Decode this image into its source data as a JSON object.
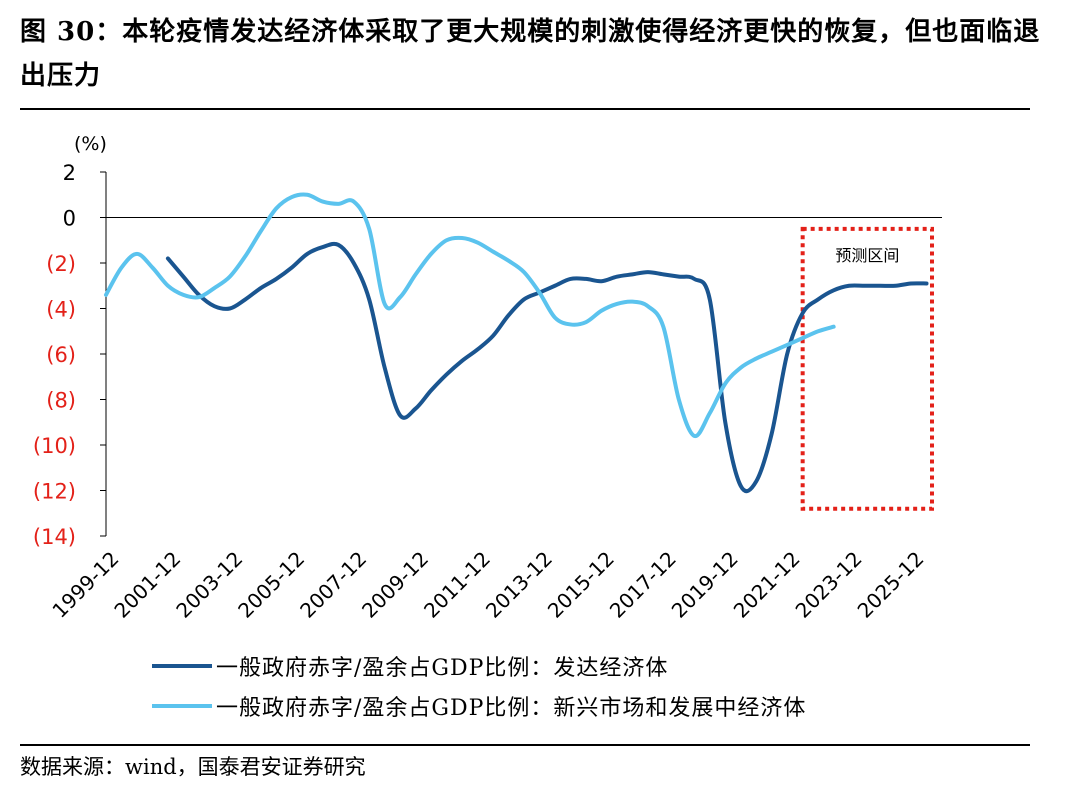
{
  "title": "图 30：本轮疫情发达经济体采取了更大规模的刺激使得经济更快的恢复，但也面临退出压力",
  "source": "数据来源：wind，国泰君安证券研究",
  "colors": {
    "developed": "#1a5590",
    "emerging": "#5bc3ee",
    "forecast_box": "#e32119",
    "negative_tick": "#e32119",
    "axis": "#000000"
  },
  "chart_data": {
    "type": "line",
    "yunit": "(%)",
    "ylim": [
      -14,
      2
    ],
    "yticks": [
      2,
      0,
      -2,
      -4,
      -6,
      -8,
      -10,
      -12,
      -14
    ],
    "ytick_labels": [
      "2",
      "0",
      "(2)",
      "(4)",
      "(6)",
      "(8)",
      "(10)",
      "(12)",
      "(14)"
    ],
    "xlim": [
      "1999-12",
      "2026-12"
    ],
    "xtick_labels": [
      "1999-12",
      "2001-12",
      "2003-12",
      "2005-12",
      "2007-12",
      "2009-12",
      "2011-12",
      "2013-12",
      "2015-12",
      "2017-12",
      "2019-12",
      "2021-12",
      "2023-12",
      "2025-12"
    ],
    "annotation": {
      "label": "预测区间",
      "x_start": "2022-06",
      "x_end": "2026-12",
      "y_top": -0.5,
      "y_bottom": -12.8
    },
    "series": [
      {
        "name": "一般政府赤字/盈余占GDP比例：发达经济体",
        "color": "#1a5590",
        "points": [
          [
            "2001-12",
            -1.8
          ],
          [
            "2002-06",
            -2.6
          ],
          [
            "2002-12",
            -3.4
          ],
          [
            "2003-06",
            -3.9
          ],
          [
            "2003-12",
            -4.0
          ],
          [
            "2004-06",
            -3.6
          ],
          [
            "2004-12",
            -3.1
          ],
          [
            "2005-06",
            -2.7
          ],
          [
            "2005-12",
            -2.2
          ],
          [
            "2006-06",
            -1.6
          ],
          [
            "2006-12",
            -1.3
          ],
          [
            "2007-06",
            -1.2
          ],
          [
            "2007-12",
            -2.0
          ],
          [
            "2008-06",
            -3.6
          ],
          [
            "2008-12",
            -6.6
          ],
          [
            "2009-06",
            -8.7
          ],
          [
            "2009-12",
            -8.4
          ],
          [
            "2010-06",
            -7.6
          ],
          [
            "2010-12",
            -6.9
          ],
          [
            "2011-06",
            -6.3
          ],
          [
            "2011-12",
            -5.8
          ],
          [
            "2012-06",
            -5.2
          ],
          [
            "2012-12",
            -4.3
          ],
          [
            "2013-06",
            -3.6
          ],
          [
            "2013-12",
            -3.3
          ],
          [
            "2014-06",
            -3.0
          ],
          [
            "2014-12",
            -2.7
          ],
          [
            "2015-06",
            -2.7
          ],
          [
            "2015-12",
            -2.8
          ],
          [
            "2016-06",
            -2.6
          ],
          [
            "2016-12",
            -2.5
          ],
          [
            "2017-06",
            -2.4
          ],
          [
            "2017-12",
            -2.5
          ],
          [
            "2018-06",
            -2.6
          ],
          [
            "2018-12",
            -2.7
          ],
          [
            "2019-06",
            -3.6
          ],
          [
            "2019-12",
            -9.0
          ],
          [
            "2020-06",
            -11.8
          ],
          [
            "2020-12",
            -11.6
          ],
          [
            "2021-06",
            -9.5
          ],
          [
            "2021-12",
            -6.0
          ],
          [
            "2022-06",
            -4.2
          ],
          [
            "2022-12",
            -3.6
          ],
          [
            "2023-06",
            -3.2
          ],
          [
            "2023-12",
            -3.0
          ],
          [
            "2024-06",
            -3.0
          ],
          [
            "2024-12",
            -3.0
          ],
          [
            "2025-06",
            -3.0
          ],
          [
            "2025-12",
            -2.9
          ],
          [
            "2026-06",
            -2.9
          ]
        ]
      },
      {
        "name": "一般政府赤字/盈余占GDP比例：新兴市场和发展中经济体",
        "color": "#5bc3ee",
        "points": [
          [
            "1999-12",
            -3.4
          ],
          [
            "2000-06",
            -2.2
          ],
          [
            "2000-12",
            -1.6
          ],
          [
            "2001-06",
            -2.2
          ],
          [
            "2001-12",
            -3.0
          ],
          [
            "2002-06",
            -3.4
          ],
          [
            "2002-12",
            -3.5
          ],
          [
            "2003-06",
            -3.1
          ],
          [
            "2003-12",
            -2.6
          ],
          [
            "2004-06",
            -1.7
          ],
          [
            "2004-12",
            -0.6
          ],
          [
            "2005-06",
            0.4
          ],
          [
            "2005-12",
            0.9
          ],
          [
            "2006-06",
            1.0
          ],
          [
            "2006-12",
            0.7
          ],
          [
            "2007-06",
            0.6
          ],
          [
            "2007-12",
            0.7
          ],
          [
            "2008-06",
            -0.5
          ],
          [
            "2008-12",
            -3.8
          ],
          [
            "2009-06",
            -3.5
          ],
          [
            "2009-12",
            -2.5
          ],
          [
            "2010-06",
            -1.6
          ],
          [
            "2010-12",
            -1.0
          ],
          [
            "2011-06",
            -0.9
          ],
          [
            "2011-12",
            -1.1
          ],
          [
            "2012-06",
            -1.5
          ],
          [
            "2012-12",
            -1.9
          ],
          [
            "2013-06",
            -2.4
          ],
          [
            "2013-12",
            -3.3
          ],
          [
            "2014-06",
            -4.4
          ],
          [
            "2014-12",
            -4.7
          ],
          [
            "2015-06",
            -4.6
          ],
          [
            "2015-12",
            -4.1
          ],
          [
            "2016-06",
            -3.8
          ],
          [
            "2016-12",
            -3.7
          ],
          [
            "2017-06",
            -3.9
          ],
          [
            "2017-12",
            -4.8
          ],
          [
            "2018-06",
            -8.0
          ],
          [
            "2018-12",
            -9.6
          ],
          [
            "2019-06",
            -8.6
          ],
          [
            "2019-12",
            -7.3
          ],
          [
            "2020-06",
            -6.6
          ],
          [
            "2020-12",
            -6.2
          ],
          [
            "2021-06",
            -5.9
          ],
          [
            "2021-12",
            -5.6
          ],
          [
            "2022-06",
            -5.3
          ],
          [
            "2022-12",
            -5.0
          ],
          [
            "2023-06",
            -4.8
          ]
        ]
      }
    ]
  }
}
